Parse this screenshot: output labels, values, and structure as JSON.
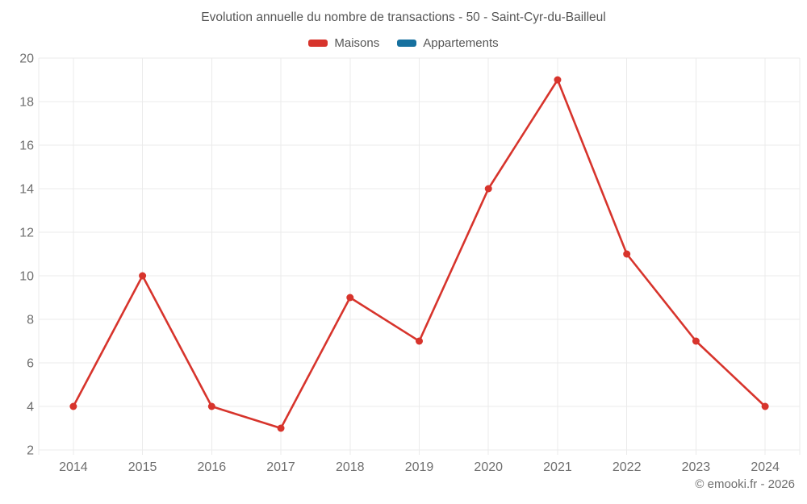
{
  "header": {
    "title": "Evolution annuelle du nombre de transactions - 50 - Saint-Cyr-du-Bailleul"
  },
  "footer": {
    "copyright": "© emooki.fr - 2026"
  },
  "chart_data": {
    "type": "line",
    "title": "Evolution annuelle du nombre de transactions - 50 - Saint-Cyr-du-Bailleul",
    "x": [
      "2014",
      "2015",
      "2016",
      "2017",
      "2018",
      "2019",
      "2020",
      "2021",
      "2022",
      "2023",
      "2024"
    ],
    "series": [
      {
        "name": "Maisons",
        "color": "#d7342c",
        "values": [
          4,
          10,
          4,
          3,
          9,
          7,
          14,
          19,
          11,
          7,
          4
        ]
      },
      {
        "name": "Appartements",
        "color": "#17719f",
        "values": []
      }
    ],
    "xlabel": "",
    "ylabel": "",
    "ylim": [
      2,
      20
    ],
    "yticks": [
      2,
      4,
      6,
      8,
      10,
      12,
      14,
      16,
      18,
      20
    ],
    "grid": true,
    "legend_position": "top",
    "marker": "circle",
    "colors": {
      "grid": "#ebebeb",
      "axis_text": "#6f6f6f",
      "title_text": "#565656"
    }
  }
}
